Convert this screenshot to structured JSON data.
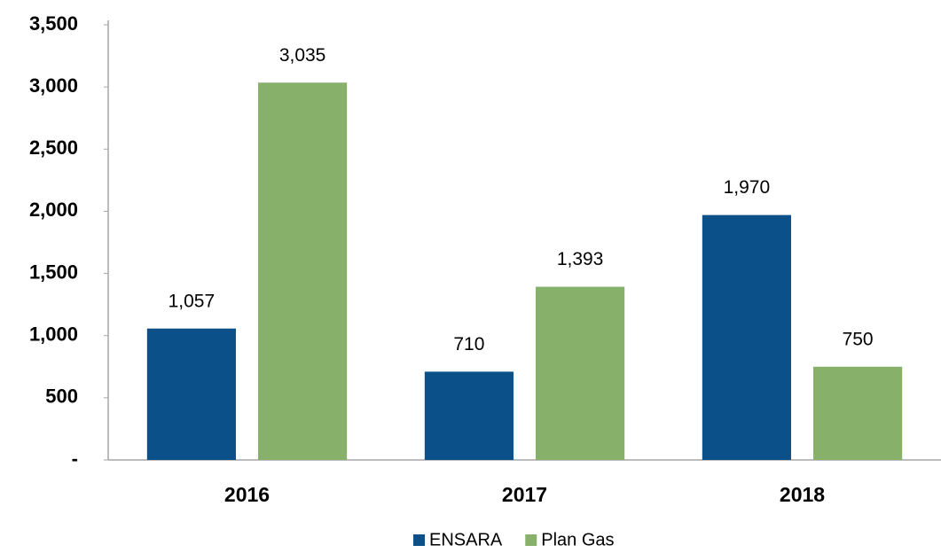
{
  "chart_data": {
    "type": "bar",
    "categories": [
      "2016",
      "2017",
      "2018"
    ],
    "series": [
      {
        "name": "ENSARA",
        "color": "#0b5089",
        "values": [
          1057,
          710,
          1970
        ],
        "value_labels": [
          "1,057",
          "710",
          "1,970"
        ]
      },
      {
        "name": "Plan Gas",
        "color": "#87b06b",
        "values": [
          3035,
          1393,
          750
        ],
        "value_labels": [
          "3,035",
          "1,393",
          "750"
        ]
      }
    ],
    "ylim": [
      0,
      3500
    ],
    "yticks": [
      {
        "value": 0,
        "label": "-"
      },
      500,
      {
        "value": 1000,
        "label": "1,000"
      },
      {
        "value": 1500,
        "label": "1,500"
      },
      {
        "value": 2000,
        "label": "2,000"
      },
      {
        "value": 2500,
        "label": "2,500"
      },
      {
        "value": 3000,
        "label": "3,000"
      },
      {
        "value": 3500,
        "label": "3,500"
      }
    ],
    "grid": false,
    "legend": "bottom"
  }
}
